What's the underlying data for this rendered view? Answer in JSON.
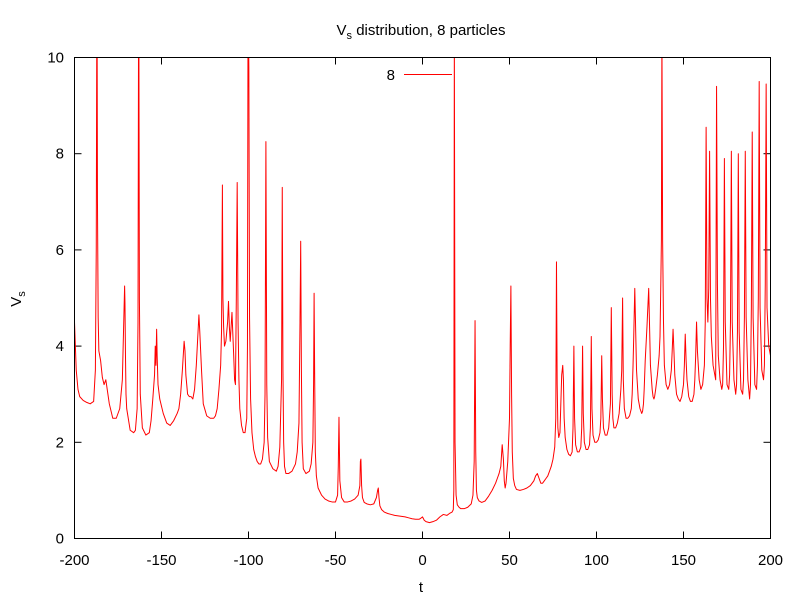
{
  "chart_data": {
    "type": "line",
    "title_main": "V",
    "title_sub": "s",
    "title_rest": " distribution, 8 particles",
    "xlabel": "t",
    "ylabel_main": "V",
    "ylabel_sub": "s",
    "xlim": [
      -200,
      200
    ],
    "ylim": [
      0,
      10
    ],
    "xticks": [
      -200,
      -150,
      -100,
      -50,
      0,
      50,
      100,
      150,
      200
    ],
    "yticks": [
      0,
      2,
      4,
      6,
      8,
      10
    ],
    "xtick_labels": [
      "-200",
      "-150",
      "-100",
      "-50",
      "0",
      "50",
      "100",
      "150",
      "200"
    ],
    "ytick_labels": [
      "0",
      "2",
      "4",
      "6",
      "8",
      "10"
    ],
    "grid": false,
    "legend_position": "top-center",
    "series": [
      {
        "name": "8",
        "color": "#ff0000",
        "x": [
          -200,
          -199,
          -198,
          -197,
          -195,
          -193,
          -191,
          -189,
          -188,
          -187.5,
          -187.2,
          -187,
          -186.8,
          -186.4,
          -186,
          -185,
          -184,
          -183,
          -182,
          -180,
          -178,
          -176,
          -174,
          -172.5,
          -171.5,
          -171.2,
          -171,
          -170.7,
          -170.4,
          -170,
          -168,
          -166,
          -165,
          -164,
          -163.5,
          -163.2,
          -163,
          -162.7,
          -162.2,
          -161,
          -159,
          -157,
          -156,
          -155,
          -154,
          -153.6,
          -153.2,
          -152.8,
          -152.5,
          -152,
          -151,
          -150,
          -149,
          -147,
          -145,
          -143,
          -141,
          -140,
          -139,
          -138,
          -137,
          -136.5,
          -136,
          -135,
          -134,
          -133,
          -132,
          -131,
          -130,
          -129,
          -128.5,
          -128,
          -127,
          -126,
          -124,
          -122,
          -120,
          -119,
          -118,
          -117,
          -116,
          -115.5,
          -115,
          -114.7,
          -114.3,
          -113.8,
          -113,
          -112,
          -111.5,
          -111,
          -110.5,
          -110,
          -109.5,
          -109,
          -108.5,
          -108,
          -107.5,
          -107,
          -106.5,
          -106,
          -105.5,
          -105,
          -104,
          -103,
          -102,
          -101,
          -100.6,
          -100.3,
          -100,
          -99.8,
          -99.4,
          -98.8,
          -98,
          -97,
          -96,
          -95,
          -94,
          -93,
          -92,
          -91,
          -90.5,
          -90,
          -89.5,
          -89,
          -88,
          -86,
          -84,
          -83,
          -82,
          -81,
          -80.6,
          -80.2,
          -79.8,
          -79.3,
          -78.5,
          -77,
          -75,
          -73,
          -72,
          -71,
          -70.4,
          -70,
          -69.6,
          -69.2,
          -68.5,
          -67,
          -65,
          -64,
          -63,
          -62.6,
          -62.3,
          -62,
          -61.6,
          -61,
          -60,
          -58,
          -56,
          -54,
          -52,
          -50,
          -48.8,
          -48.4,
          -48,
          -47.5,
          -46.5,
          -45,
          -43,
          -41,
          -39,
          -37,
          -36,
          -35.7,
          -35.4,
          -35,
          -34.5,
          -33.5,
          -32,
          -30,
          -28,
          -26.5,
          -25.8,
          -25.4,
          -25,
          -24.5,
          -23.5,
          -22,
          -20,
          -18,
          -16,
          -14,
          -12,
          -10,
          -8,
          -6,
          -4,
          -2,
          -1,
          0,
          1,
          2,
          4,
          6,
          8,
          10,
          12,
          14,
          15.5,
          17,
          17.7,
          18,
          18.3,
          18.7,
          19.3,
          20,
          21,
          22,
          24,
          26,
          28,
          29,
          29.7,
          30.2,
          30.6,
          31,
          31.5,
          32.5,
          34,
          36,
          38,
          40,
          42,
          43,
          44,
          45,
          45.8,
          46.5,
          47,
          47.5,
          48,
          49,
          50,
          50.4,
          50.8,
          51.2,
          51.6,
          52.2,
          53,
          54,
          56,
          58,
          60,
          62,
          64,
          65,
          66,
          67,
          68,
          69,
          70,
          71,
          72,
          73,
          74,
          75,
          76,
          76.6,
          77,
          77.4,
          77.8,
          78.3,
          79,
          80,
          80.6,
          81,
          81.4,
          82,
          83,
          84,
          85,
          86,
          86.5,
          87,
          87.4,
          88,
          89,
          90,
          91,
          91.5,
          92,
          92.4,
          93,
          94,
          95,
          96,
          96.5,
          97,
          97.4,
          98,
          99,
          100,
          101,
          102,
          102.5,
          103,
          103.4,
          104,
          105,
          106,
          107,
          108,
          108.5,
          109,
          109.4,
          110,
          111,
          112,
          113,
          114,
          114.5,
          115,
          115.4,
          116,
          117,
          118,
          119,
          120,
          120.5,
          121,
          121.4,
          122,
          123,
          124,
          125,
          126,
          126.5,
          127,
          127.4,
          128,
          129,
          130,
          131,
          132,
          132.5,
          133,
          133.4,
          134,
          135,
          136,
          136.5,
          137,
          137.3,
          137.6,
          138,
          138.5,
          139,
          140,
          141,
          142,
          143,
          143.5,
          144,
          144.5,
          145,
          146,
          147,
          148,
          149,
          150,
          150.5,
          151,
          151.5,
          152,
          153,
          154,
          155,
          156,
          156.5,
          157,
          157.5,
          158,
          159,
          160,
          161,
          162,
          162.5,
          163,
          163.5,
          164,
          164.5,
          165,
          165.5,
          166,
          167,
          168,
          168.5,
          169,
          169.5,
          170,
          171,
          172,
          172.5,
          173,
          173.5,
          174,
          175,
          176,
          176.5,
          177,
          177.5,
          178,
          179,
          180,
          180.5,
          181,
          181.5,
          182,
          183,
          184,
          184.5,
          185,
          185.5,
          186,
          187,
          188,
          188.5,
          189,
          189.5,
          190,
          191,
          192,
          192.5,
          193,
          193.5,
          194,
          195,
          196,
          196.5,
          197,
          197.5,
          198,
          199,
          200
        ],
        "y": [
          4.5,
          3.5,
          3.1,
          2.95,
          2.87,
          2.83,
          2.8,
          2.85,
          3.5,
          6,
          10.5,
          10.5,
          7,
          4.6,
          3.9,
          3.7,
          3.35,
          3.2,
          3.3,
          2.8,
          2.5,
          2.5,
          2.7,
          3.3,
          4.8,
          5.25,
          4.9,
          3.8,
          3.0,
          2.7,
          2.25,
          2.2,
          2.25,
          2.7,
          4.5,
          10.5,
          10.5,
          5,
          3,
          2.3,
          2.15,
          2.2,
          2.45,
          2.9,
          3.4,
          4.0,
          3.6,
          4.35,
          3.8,
          3.2,
          2.9,
          2.75,
          2.6,
          2.4,
          2.35,
          2.45,
          2.6,
          2.7,
          3.0,
          3.5,
          4.1,
          3.9,
          3.4,
          3.0,
          2.95,
          2.95,
          2.9,
          3.1,
          3.6,
          4.3,
          4.65,
          4.3,
          3.5,
          2.8,
          2.55,
          2.5,
          2.5,
          2.55,
          2.7,
          3.1,
          3.6,
          4.3,
          7.35,
          5.0,
          4.4,
          4.0,
          4.1,
          4.5,
          4.93,
          4.4,
          4.1,
          4.4,
          4.7,
          4.25,
          3.8,
          3.3,
          3.2,
          5.0,
          7.4,
          4.5,
          3.3,
          2.7,
          2.35,
          2.2,
          2.2,
          2.5,
          4.0,
          10.5,
          10.5,
          9.8,
          4.6,
          2.9,
          2.2,
          1.85,
          1.7,
          1.6,
          1.55,
          1.55,
          1.65,
          2.0,
          3.0,
          8.25,
          3.2,
          2.1,
          1.6,
          1.45,
          1.4,
          1.5,
          1.9,
          3.3,
          7.3,
          3.5,
          2.0,
          1.5,
          1.35,
          1.35,
          1.4,
          1.55,
          1.8,
          2.4,
          4.5,
          6.18,
          3.5,
          2.0,
          1.45,
          1.35,
          1.4,
          1.55,
          2.0,
          3.2,
          5.1,
          3.5,
          1.8,
          1.3,
          1.05,
          0.9,
          0.82,
          0.78,
          0.76,
          0.76,
          0.9,
          1.5,
          2.52,
          1.2,
          0.85,
          0.76,
          0.76,
          0.78,
          0.82,
          0.9,
          1.1,
          1.6,
          1.65,
          1.1,
          0.85,
          0.75,
          0.72,
          0.7,
          0.72,
          0.85,
          1.0,
          1.05,
          0.85,
          0.68,
          0.6,
          0.55,
          0.52,
          0.5,
          0.48,
          0.47,
          0.46,
          0.45,
          0.43,
          0.41,
          0.4,
          0.4,
          0.42,
          0.45,
          0.38,
          0.35,
          0.33,
          0.35,
          0.38,
          0.45,
          0.5,
          0.48,
          0.52,
          0.55,
          0.6,
          1.0,
          10.5,
          2.0,
          0.9,
          0.7,
          0.65,
          0.62,
          0.62,
          0.65,
          0.72,
          0.9,
          1.6,
          4.53,
          1.8,
          1.0,
          0.85,
          0.78,
          0.75,
          0.78,
          0.88,
          1.0,
          1.15,
          1.25,
          1.35,
          1.5,
          1.95,
          1.65,
          1.2,
          1.05,
          1.15,
          1.6,
          2.5,
          4.0,
          5.25,
          3.0,
          1.8,
          1.25,
          1.1,
          1.02,
          1.0,
          1.02,
          1.05,
          1.1,
          1.2,
          1.3,
          1.35,
          1.25,
          1.15,
          1.15,
          1.2,
          1.25,
          1.3,
          1.4,
          1.5,
          1.65,
          1.9,
          2.5,
          5.75,
          3.2,
          2.3,
          2.1,
          2.2,
          3.4,
          3.6,
          3.3,
          2.5,
          2.1,
          1.85,
          1.75,
          1.72,
          1.8,
          2.3,
          4.0,
          2.5,
          1.95,
          1.8,
          1.8,
          1.9,
          2.3,
          4.0,
          2.6,
          2.0,
          1.85,
          1.85,
          1.95,
          2.3,
          4.2,
          2.7,
          2.15,
          2.0,
          2.0,
          2.05,
          2.2,
          2.5,
          3.8,
          2.9,
          2.3,
          2.15,
          2.15,
          2.3,
          2.8,
          4.8,
          3.0,
          2.5,
          2.3,
          2.3,
          2.4,
          2.6,
          3.1,
          3.5,
          5.0,
          3.3,
          2.7,
          2.5,
          2.5,
          2.55,
          2.7,
          3.0,
          3.6,
          4.2,
          5.2,
          3.5,
          2.9,
          2.7,
          2.6,
          2.65,
          2.8,
          3.1,
          3.7,
          4.4,
          5.2,
          3.6,
          3.1,
          2.95,
          2.9,
          2.95,
          3.1,
          3.4,
          3.8,
          4.2,
          5.4,
          6.2,
          10.5,
          6.2,
          4.5,
          3.6,
          3.2,
          3.1,
          3.2,
          3.5,
          3.9,
          4.35,
          3.9,
          3.4,
          3.0,
          2.9,
          2.85,
          2.95,
          3.2,
          3.6,
          4.25,
          3.7,
          3.3,
          2.95,
          2.85,
          2.85,
          3.0,
          3.3,
          3.8,
          4.5,
          3.9,
          3.3,
          3.1,
          3.2,
          3.6,
          4.5,
          8.55,
          5.0,
          4.5,
          5.2,
          8.05,
          5.0,
          4.2,
          3.6,
          3.4,
          3.3,
          9.4,
          5.3,
          3.8,
          3.3,
          3.1,
          3.2,
          4.0,
          7.9,
          4.5,
          3.2,
          3.1,
          3.4,
          4.5,
          8.05,
          4.5,
          3.3,
          3.0,
          3.2,
          4.3,
          8.0,
          4.3,
          3.1,
          3.0,
          3.3,
          4.6,
          8.05,
          4.6,
          3.3,
          2.9,
          3.2,
          4.8,
          8.45,
          4.6,
          3.2,
          3.1,
          3.6,
          5.0,
          9.5,
          4.8,
          3.5,
          3.3,
          3.6,
          5.3,
          9.45,
          4.8,
          4.0,
          3.8
        ]
      }
    ]
  }
}
